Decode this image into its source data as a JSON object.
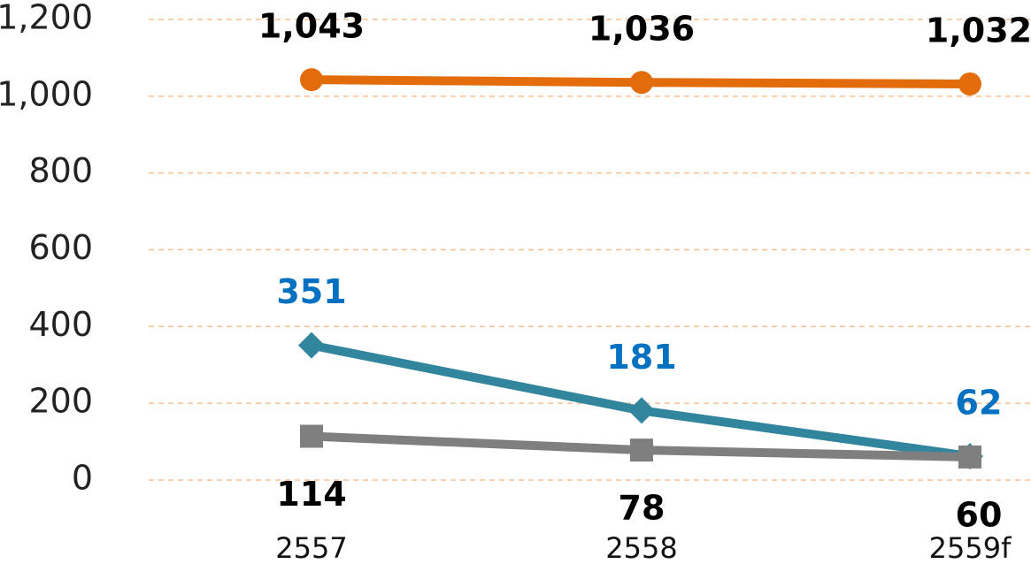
{
  "chart_data": {
    "type": "line",
    "categories": [
      "2557",
      "2558",
      "2559f"
    ],
    "series": [
      {
        "color": "#e36c0a",
        "marker": "circle",
        "label_color": "#000000",
        "label_position": "above",
        "values": [
          1043,
          1036,
          1032
        ],
        "value_labels": [
          "1,043",
          "1,036",
          "1,032"
        ]
      },
      {
        "color": "#31859c",
        "marker": "diamond",
        "label_color": "#0070c0",
        "label_position": "above",
        "values": [
          351,
          181,
          62
        ]
      },
      {
        "color": "#7f7f7f",
        "marker": "square",
        "label_color": "#000000",
        "label_position": "below",
        "values": [
          114,
          78,
          60
        ]
      }
    ],
    "ylim": [
      0,
      1200
    ],
    "yticks": [
      0,
      200,
      400,
      600,
      800,
      {
        "value": 1000,
        "label": "1,000"
      },
      {
        "value": 1200,
        "label": "1,200"
      }
    ],
    "grid": true
  }
}
